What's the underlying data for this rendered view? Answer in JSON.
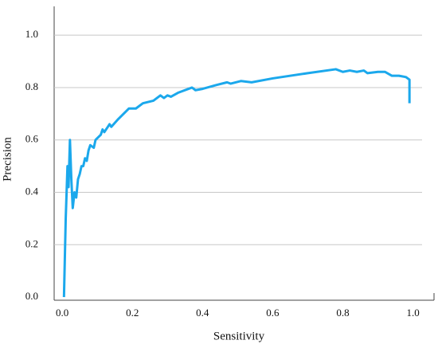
{
  "chart_data": {
    "type": "line",
    "x_label": "Sensitivity",
    "y_label": "Precision",
    "x": [
      0.005,
      0.01,
      0.015,
      0.018,
      0.022,
      0.026,
      0.03,
      0.035,
      0.04,
      0.045,
      0.05,
      0.055,
      0.06,
      0.065,
      0.07,
      0.075,
      0.08,
      0.09,
      0.095,
      0.11,
      0.115,
      0.12,
      0.13,
      0.135,
      0.14,
      0.16,
      0.19,
      0.21,
      0.23,
      0.26,
      0.28,
      0.29,
      0.3,
      0.31,
      0.33,
      0.37,
      0.38,
      0.4,
      0.44,
      0.47,
      0.48,
      0.51,
      0.54,
      0.6,
      0.7,
      0.78,
      0.8,
      0.82,
      0.84,
      0.86,
      0.87,
      0.9,
      0.92,
      0.94,
      0.96,
      0.98,
      0.99,
      0.99
    ],
    "values": [
      0.0,
      0.3,
      0.5,
      0.42,
      0.6,
      0.45,
      0.34,
      0.4,
      0.38,
      0.45,
      0.47,
      0.5,
      0.5,
      0.53,
      0.52,
      0.56,
      0.58,
      0.57,
      0.6,
      0.62,
      0.64,
      0.63,
      0.65,
      0.66,
      0.65,
      0.68,
      0.72,
      0.72,
      0.74,
      0.75,
      0.77,
      0.76,
      0.77,
      0.765,
      0.78,
      0.8,
      0.79,
      0.795,
      0.81,
      0.82,
      0.815,
      0.825,
      0.82,
      0.835,
      0.855,
      0.87,
      0.86,
      0.865,
      0.86,
      0.865,
      0.855,
      0.86,
      0.86,
      0.845,
      0.845,
      0.84,
      0.83,
      0.74
    ],
    "color": "#1ba8ec",
    "xlim": [
      -0.023,
      1.06
    ],
    "ylim": [
      -0.012,
      1.11
    ],
    "xticks": [
      {
        "value": 0,
        "label": "0.0"
      },
      0.2,
      0.4,
      0.6,
      0.8,
      {
        "value": 1,
        "label": "1.0"
      }
    ],
    "yticks": [
      {
        "value": 0,
        "label": "0.0"
      },
      0.2,
      0.4,
      0.6,
      0.8,
      {
        "value": 1,
        "label": "1.0"
      }
    ],
    "grid": true
  }
}
